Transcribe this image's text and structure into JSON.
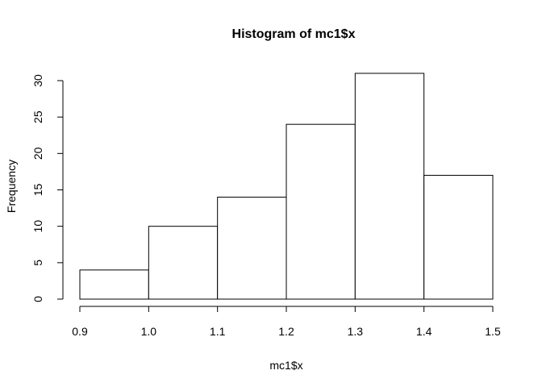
{
  "chart_data": {
    "type": "bar",
    "title": "Histogram of mc1$x",
    "xlabel": "mc1$x",
    "ylabel": "Frequency",
    "bins": [
      {
        "start": 0.9,
        "end": 1.0,
        "count": 4
      },
      {
        "start": 1.0,
        "end": 1.1,
        "count": 10
      },
      {
        "start": 1.1,
        "end": 1.2,
        "count": 14
      },
      {
        "start": 1.2,
        "end": 1.3,
        "count": 24
      },
      {
        "start": 1.3,
        "end": 1.4,
        "count": 31
      },
      {
        "start": 1.4,
        "end": 1.5,
        "count": 17
      }
    ],
    "xlim": [
      0.9,
      1.5
    ],
    "ylim": [
      0,
      31
    ],
    "x_ticks": [
      "0.9",
      "1.0",
      "1.1",
      "1.2",
      "1.3",
      "1.4",
      "1.5"
    ],
    "y_ticks": [
      "0",
      "5",
      "10",
      "15",
      "20",
      "25",
      "30"
    ],
    "grid": false,
    "colors": {
      "bar_fill": "#ffffff",
      "bar_stroke": "#000000"
    }
  }
}
